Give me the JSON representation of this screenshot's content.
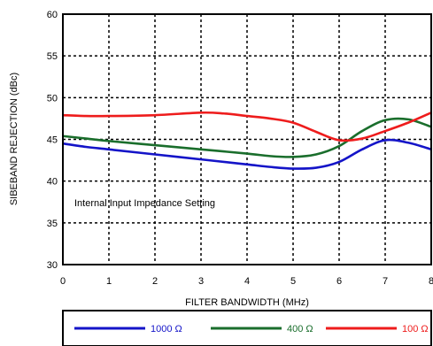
{
  "chart_data": {
    "type": "line",
    "xlabel": "FILTER BANDWIDTH (MHz)",
    "ylabel": "SIBEBAND REJECTION (dBc)",
    "xlim": [
      0,
      8
    ],
    "ylim": [
      30,
      60
    ],
    "xticks": [
      "0",
      "1",
      "2",
      "3",
      "4",
      "5",
      "6",
      "7",
      "8"
    ],
    "yticks": [
      "30",
      "35",
      "40",
      "45",
      "50",
      "55",
      "60"
    ],
    "grid": true,
    "annotation": "Internal Input Impedance Setting",
    "legend_position": "bottom",
    "series": [
      {
        "name": "1000 Ω",
        "color": "#1414c8",
        "x": [
          0,
          0.5,
          1,
          2,
          3,
          4,
          4.5,
          5,
          5.5,
          6,
          6.5,
          7,
          7.5,
          8
        ],
        "y": [
          44.5,
          44.1,
          43.8,
          43.2,
          42.6,
          42.0,
          41.7,
          41.5,
          41.6,
          42.3,
          43.8,
          44.9,
          44.6,
          43.8
        ]
      },
      {
        "name": "400 Ω",
        "color": "#1a6e2c",
        "x": [
          0,
          0.5,
          1,
          2,
          3,
          4,
          4.5,
          5,
          5.5,
          6,
          6.5,
          7,
          7.5,
          8
        ],
        "y": [
          45.4,
          45.1,
          44.8,
          44.3,
          43.8,
          43.3,
          43.0,
          42.9,
          43.2,
          44.2,
          46.0,
          47.3,
          47.4,
          46.5
        ]
      },
      {
        "name": "100 Ω",
        "color": "#ee1c1c",
        "x": [
          0,
          0.5,
          1,
          2,
          3,
          3.5,
          4,
          4.5,
          5,
          5.5,
          6,
          6.5,
          7,
          7.5,
          8
        ],
        "y": [
          47.9,
          47.8,
          47.8,
          47.9,
          48.2,
          48.1,
          47.8,
          47.5,
          47.0,
          45.9,
          44.9,
          45.1,
          46.0,
          47.0,
          48.2
        ]
      }
    ]
  }
}
